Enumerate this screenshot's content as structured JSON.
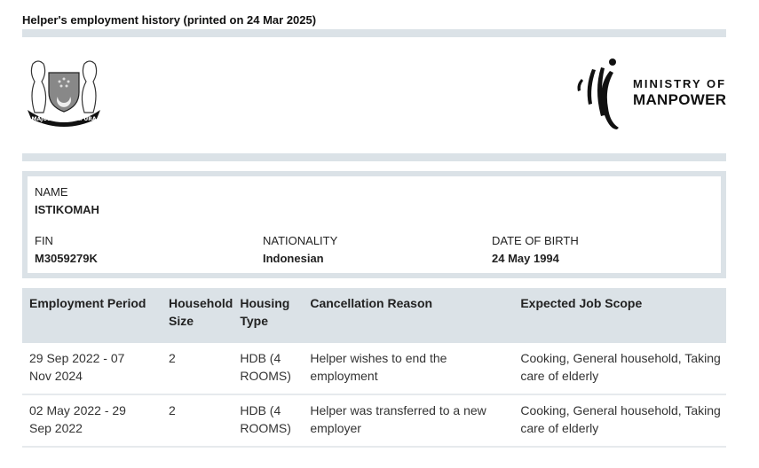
{
  "header": {
    "title": "Helper's employment history (printed on 24 Mar 2025)"
  },
  "logos": {
    "crest_motto": "MAJULAH SINGAPURA",
    "ministry_line1": "MINISTRY OF",
    "ministry_line2": "MANPOWER"
  },
  "helper": {
    "name_label": "NAME",
    "name": "ISTIKOMAH",
    "fin_label": "FIN",
    "fin": "M3059279K",
    "nationality_label": "NATIONALITY",
    "nationality": "Indonesian",
    "dob_label": "DATE OF BIRTH",
    "dob": "24 May 1994"
  },
  "table": {
    "headers": [
      "Employment Period",
      "Household Size",
      "Housing Type",
      "Cancellation Reason",
      "Expected Job Scope"
    ],
    "rows": [
      {
        "period": "29 Sep 2022 - 07 Nov 2024",
        "household": "2",
        "housing": "HDB (4 ROOMS)",
        "reason": "Helper wishes to end the employment",
        "scope": "Cooking, General household, Taking care of elderly"
      },
      {
        "period": "02 May 2022 - 29 Sep 2022",
        "household": "2",
        "housing": "HDB (4 ROOMS)",
        "reason": "Helper was transferred to a new employer",
        "scope": "Cooking, General household, Taking care of elderly"
      }
    ]
  }
}
